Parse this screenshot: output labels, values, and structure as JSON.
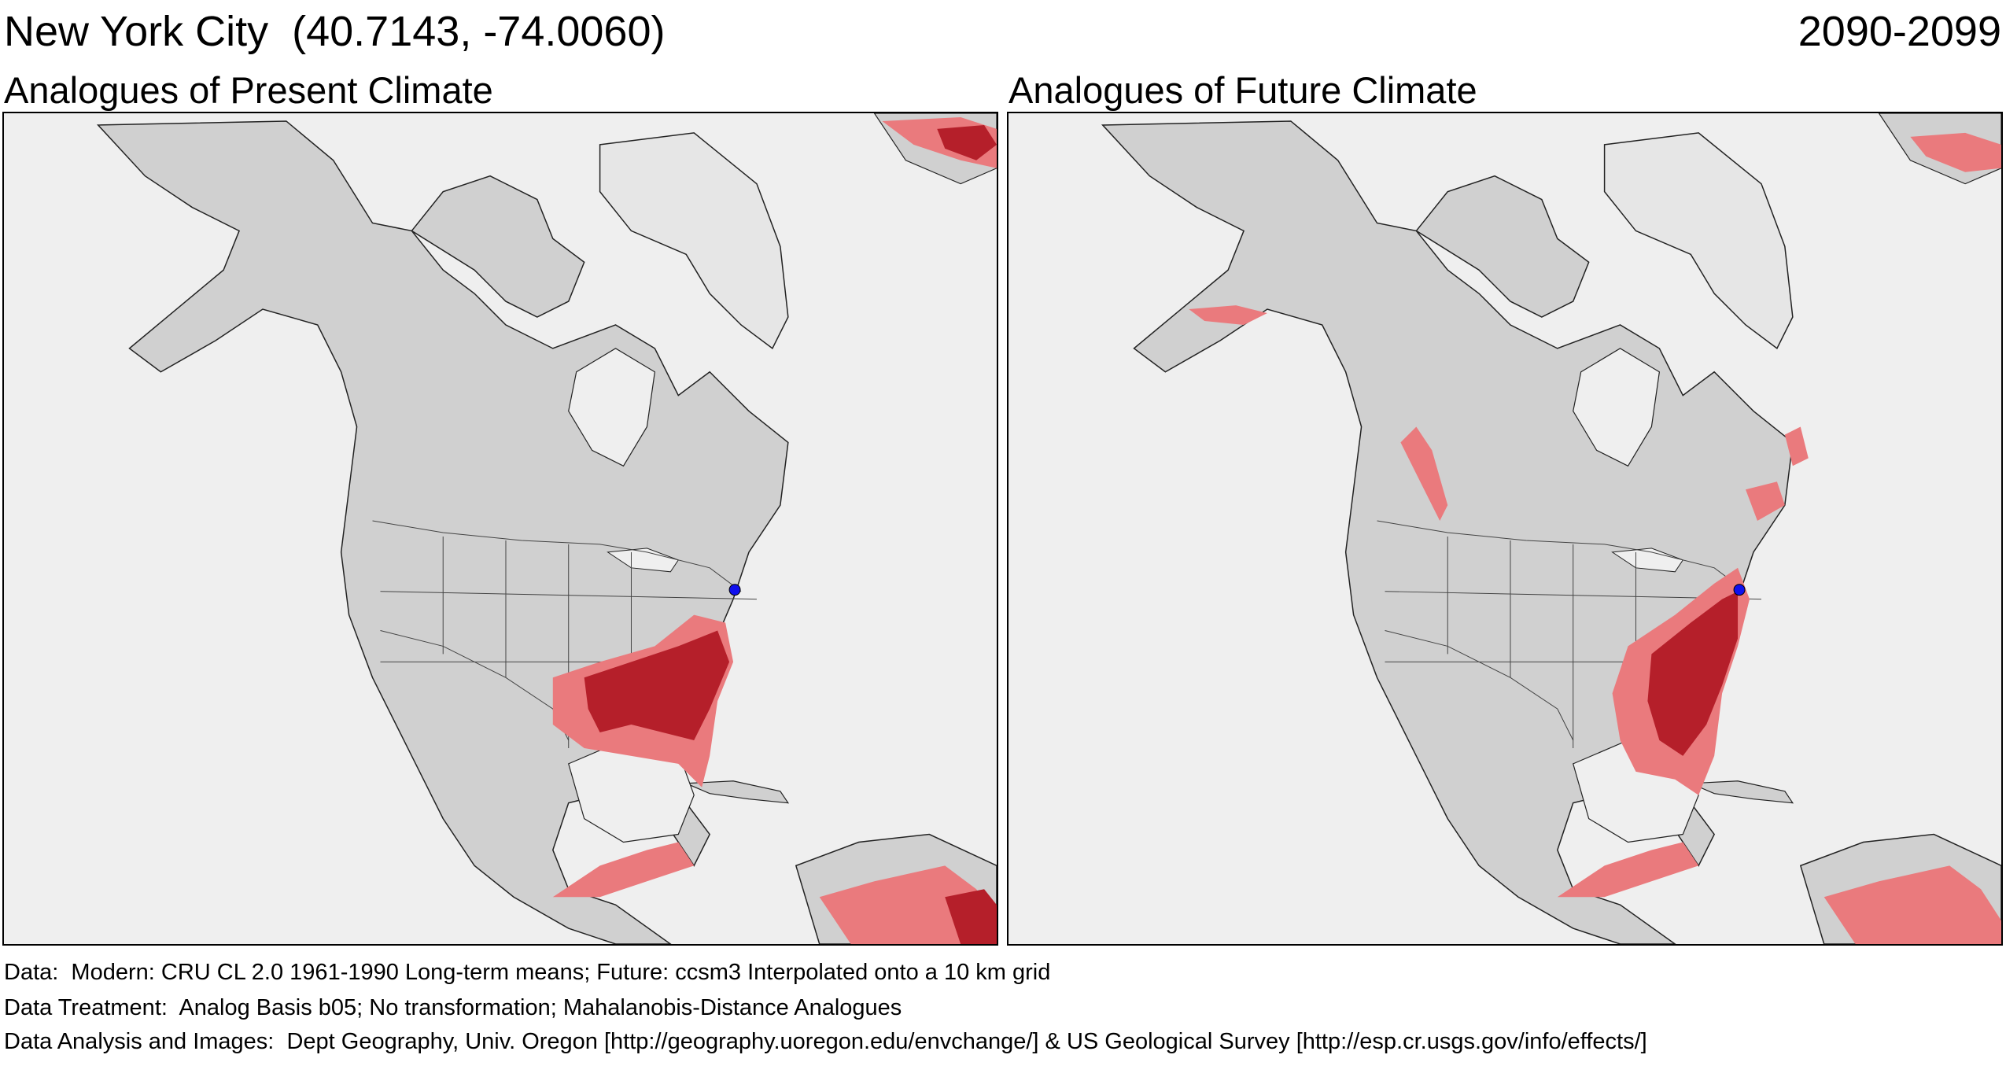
{
  "header": {
    "location": "New York City  (40.7143, -74.0060)",
    "period": "2090-2099"
  },
  "panels": [
    {
      "title": "Analogues of Present Climate",
      "scenario": "present"
    },
    {
      "title": "Analogues of Future Climate",
      "scenario": "future"
    }
  ],
  "colors": {
    "land": "#d0d0d0",
    "ocean": "#efefef",
    "ice": "#e6e6e6",
    "analog_strong": "#b51f2a",
    "analog_weak": "#ea7a7d",
    "site_marker": "#1010ee",
    "border": "#333333"
  },
  "site": {
    "name": "New York City",
    "lat": 40.7143,
    "lon": -74.006
  },
  "footer": {
    "data": "Data:  Modern: CRU CL 2.0 1961-1990 Long-term means; Future: ccsm3 Interpolated onto a 10 km grid",
    "treatment": "Data Treatment:  Analog Basis b05; No transformation; Mahalanobis-Distance Analogues",
    "analysis": "Data Analysis and Images:  Dept Geography, Univ. Oregon [http://geography.uoregon.edu/envchange/] & US Geological Survey [http://esp.cr.usgs.gov/info/effects/]"
  }
}
